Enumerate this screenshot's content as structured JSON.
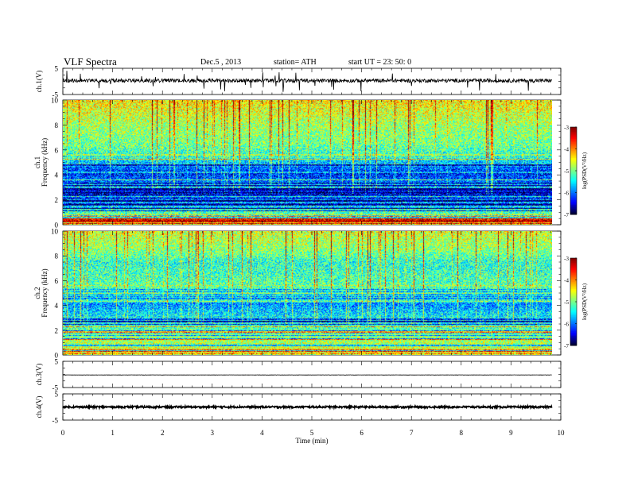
{
  "header": {
    "title": "VLF Spectra",
    "date": "Dec.5 , 2013",
    "station": "station= ATH",
    "start": "start UT = 23: 50: 0"
  },
  "chart_data": {
    "type": "heatmap",
    "title": "VLF Spectra",
    "xlabel": "Time (min)",
    "xlim": [
      0,
      10
    ],
    "x_ticks": [
      "0",
      "1",
      "2",
      "3",
      "4",
      "5",
      "6",
      "7",
      "8",
      "9",
      "10"
    ],
    "data_end_min": 9.82,
    "panels": [
      {
        "kind": "waveform",
        "ylabel": "ch.1(V)",
        "ylim": [
          -5,
          5
        ],
        "y_ticks": [
          "5",
          "-5"
        ],
        "baseline": 0.3
      },
      {
        "kind": "spectrogram",
        "ylabel_channel": "ch.1",
        "ylabel": "Frequency (kHz)",
        "ylim": [
          0,
          10
        ],
        "y_ticks": [
          "0",
          "2",
          "4",
          "6",
          "8",
          "10"
        ],
        "colorbar": {
          "label": "log(PSD(V²/Hz)",
          "range": [
            -7,
            -3
          ],
          "ticks": [
            "-3",
            "-4",
            "-5",
            "-6",
            "-7"
          ]
        },
        "frequency_profile_kHz": [
          [
            0,
            -3.4
          ],
          [
            0.4,
            -3.3
          ],
          [
            0.8,
            -5.0
          ],
          [
            1.5,
            -5.3
          ],
          [
            2.5,
            -6.5
          ],
          [
            3.5,
            -6.0
          ],
          [
            4.2,
            -6.3
          ],
          [
            5.5,
            -5.3
          ],
          [
            6.5,
            -5.0
          ],
          [
            8.0,
            -4.8
          ],
          [
            10.0,
            -4.4
          ]
        ]
      },
      {
        "kind": "spectrogram",
        "ylabel_channel": "ch.2",
        "ylabel": "Frequency (kHz)",
        "ylim": [
          0,
          10
        ],
        "y_ticks": [
          "0",
          "2",
          "4",
          "6",
          "8",
          "10"
        ],
        "colorbar": {
          "label": "log(PSD(V²/Hz)",
          "range": [
            -7,
            -3
          ],
          "ticks": [
            "-3",
            "-4",
            "-5",
            "-6",
            "-7"
          ]
        },
        "frequency_profile_kHz": [
          [
            0,
            -4.3
          ],
          [
            0.5,
            -4.6
          ],
          [
            1.5,
            -4.9
          ],
          [
            2.5,
            -5.3
          ],
          [
            3.5,
            -5.6
          ],
          [
            4.5,
            -6.0
          ],
          [
            5.5,
            -5.1
          ],
          [
            6.5,
            -5.2
          ],
          [
            7.5,
            -5.3
          ],
          [
            8.5,
            -4.9
          ],
          [
            10.0,
            -4.6
          ]
        ]
      },
      {
        "kind": "waveform",
        "ylabel": "ch.3(V)",
        "ylim": [
          -5,
          5
        ],
        "y_ticks": [
          "5",
          "-5"
        ],
        "baseline": -0.2
      },
      {
        "kind": "waveform",
        "ylabel": "ch.4(V)",
        "ylim": [
          -5,
          5
        ],
        "y_ticks": [
          "5",
          "-5"
        ],
        "baseline": 0.0
      }
    ]
  }
}
